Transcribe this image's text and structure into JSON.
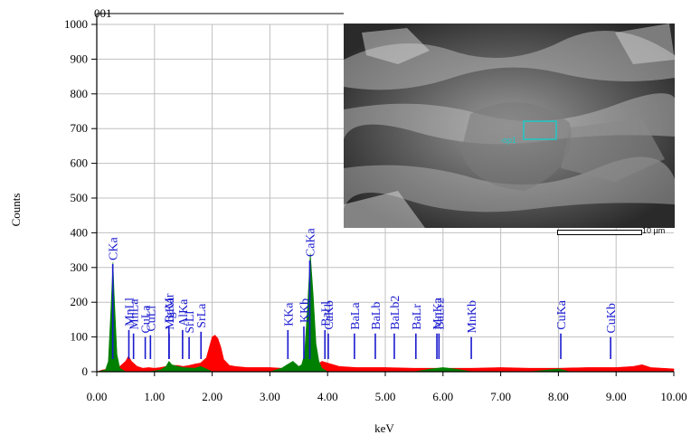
{
  "chart_data": {
    "type": "area",
    "title": "001",
    "xlabel": "keV",
    "ylabel": "Counts",
    "xlim": [
      0,
      10
    ],
    "ylim": [
      0,
      1000
    ],
    "x_ticks": [
      "0.00",
      "1.00",
      "2.00",
      "3.00",
      "4.00",
      "5.00",
      "6.00",
      "7.00",
      "8.00",
      "9.00",
      "10.00"
    ],
    "y_ticks": [
      "0",
      "100",
      "200",
      "300",
      "400",
      "500",
      "600",
      "700",
      "800",
      "900",
      "1000"
    ],
    "grid": true,
    "series": [
      {
        "color": "#ff0000",
        "x": [
          0.0,
          0.1,
          0.2,
          0.3,
          0.4,
          0.5,
          0.55,
          0.6,
          0.7,
          0.8,
          0.9,
          1.0,
          1.1,
          1.2,
          1.3,
          1.4,
          1.5,
          1.6,
          1.7,
          1.8,
          1.9,
          1.95,
          2.0,
          2.05,
          2.1,
          2.15,
          2.2,
          2.3,
          2.4,
          2.6,
          2.8,
          3.0,
          3.2,
          3.4,
          3.6,
          3.8,
          3.9,
          4.0,
          4.2,
          4.5,
          5.0,
          5.5,
          6.0,
          6.5,
          7.0,
          7.5,
          8.0,
          8.5,
          9.0,
          9.3,
          9.45,
          9.6,
          10.0
        ],
        "y": [
          0,
          5,
          8,
          10,
          15,
          30,
          45,
          30,
          15,
          10,
          12,
          10,
          12,
          15,
          18,
          18,
          15,
          18,
          22,
          25,
          40,
          70,
          100,
          105,
          95,
          70,
          35,
          18,
          15,
          12,
          12,
          12,
          10,
          10,
          12,
          15,
          30,
          25,
          15,
          12,
          12,
          10,
          10,
          10,
          12,
          10,
          10,
          12,
          12,
          15,
          20,
          12,
          8
        ]
      },
      {
        "color": "#008000",
        "x": [
          0.0,
          0.15,
          0.2,
          0.25,
          0.28,
          0.3,
          0.35,
          0.4,
          0.5,
          0.9,
          1.1,
          1.2,
          1.25,
          1.3,
          1.4,
          1.5,
          1.7,
          1.8,
          1.9,
          2.0,
          3.0,
          3.2,
          3.3,
          3.4,
          3.5,
          3.55,
          3.6,
          3.65,
          3.7,
          3.75,
          3.8,
          3.85,
          3.9,
          4.0,
          5.5,
          5.8,
          6.0,
          6.2,
          6.5,
          7.5,
          8.0,
          8.2,
          10.0
        ],
        "y": [
          0,
          5,
          30,
          200,
          315,
          230,
          50,
          10,
          0,
          0,
          5,
          15,
          30,
          20,
          15,
          12,
          10,
          15,
          8,
          0,
          0,
          10,
          20,
          30,
          15,
          20,
          50,
          180,
          340,
          220,
          80,
          30,
          10,
          0,
          0,
          8,
          12,
          8,
          0,
          0,
          8,
          0,
          0
        ]
      }
    ],
    "peak_markers": [
      {
        "label": "CKa",
        "x": 0.277,
        "height": 310
      },
      {
        "label": "MnLl",
        "x": 0.556,
        "height": 120
      },
      {
        "label": "MnLa",
        "x": 0.637,
        "height": 110
      },
      {
        "label": "CuLa",
        "x": 0.84,
        "height": 100
      },
      {
        "label": "CuLl",
        "x": 0.93,
        "height": 105
      },
      {
        "label": "BaMr",
        "x": 1.25,
        "height": 130
      },
      {
        "label": "MgKa",
        "x": 1.254,
        "height": 110
      },
      {
        "label": "AlKa",
        "x": 1.487,
        "height": 120
      },
      {
        "label": "SrLl",
        "x": 1.6,
        "height": 100
      },
      {
        "label": "SrLa",
        "x": 1.806,
        "height": 115
      },
      {
        "label": "KKa",
        "x": 3.312,
        "height": 120
      },
      {
        "label": "KKb",
        "x": 3.589,
        "height": 130
      },
      {
        "label": "CaKa",
        "x": 3.691,
        "height": 320
      },
      {
        "label": "CaKb",
        "x": 4.012,
        "height": 110
      },
      {
        "label": "BaLl",
        "x": 3.954,
        "height": 120
      },
      {
        "label": "BaLa",
        "x": 4.465,
        "height": 110
      },
      {
        "label": "BaLb",
        "x": 4.827,
        "height": 110
      },
      {
        "label": "BaLb2",
        "x": 5.156,
        "height": 110
      },
      {
        "label": "BaLr",
        "x": 5.53,
        "height": 110
      },
      {
        "label": "MnKa",
        "x": 5.894,
        "height": 110
      },
      {
        "label": "BaLr2",
        "x": 5.93,
        "height": 110
      },
      {
        "label": "MnKb",
        "x": 6.49,
        "height": 100
      },
      {
        "label": "CuKa",
        "x": 8.041,
        "height": 110
      },
      {
        "label": "CuKb",
        "x": 8.905,
        "height": 100
      }
    ]
  },
  "image_inset": {
    "roi_label": "-op1",
    "scale_label": "10 µm",
    "roi_color": "#1ec8c8"
  }
}
